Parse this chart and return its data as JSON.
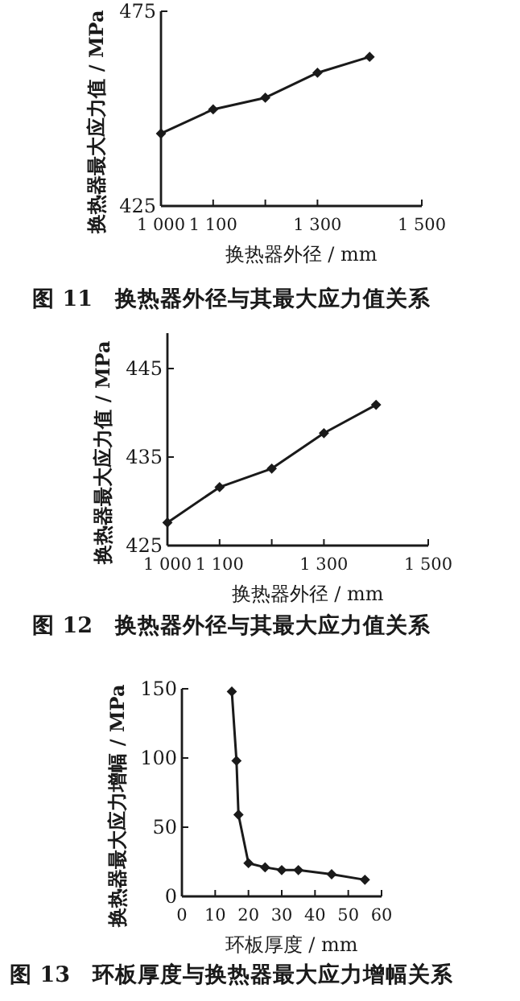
{
  "chart_data": [
    {
      "type": "line",
      "title": "图 11　换热器外径与其最大应力值关系",
      "xlabel": "换热器外径 / mm",
      "ylabel": "换热器最大应力值 / MPa",
      "marker": "diamond",
      "xlim": [
        1000,
        1500
      ],
      "ylim": [
        425,
        475
      ],
      "xticks": [
        {
          "value": 1000,
          "label": "1 000"
        },
        {
          "value": 1100,
          "label": "1 100"
        },
        {
          "value": 1200,
          "label": null
        },
        {
          "value": 1300,
          "label": "1 300"
        },
        {
          "value": 1500,
          "label": "1 500"
        }
      ],
      "yticks": [
        425,
        475
      ],
      "x": [
        1000,
        1100,
        1200,
        1300,
        1400
      ],
      "series": [
        {
          "color": "#1a1a1a",
          "values": [
            443.6,
            449.8,
            452.8,
            459.2,
            463.3
          ]
        }
      ]
    },
    {
      "type": "line",
      "title": "图 12　换热器外径与其最大应力值关系",
      "xlabel": "换热器外径 / mm",
      "ylabel": "换热器最大应力值 / MPa",
      "marker": "diamond",
      "xlim": [
        1000,
        1500
      ],
      "ylim": [
        425,
        449
      ],
      "xticks": [
        {
          "value": 1000,
          "label": "1 000"
        },
        {
          "value": 1100,
          "label": "1 100"
        },
        {
          "value": 1200,
          "label": null
        },
        {
          "value": 1300,
          "label": "1 300"
        },
        {
          "value": 1500,
          "label": "1 500"
        }
      ],
      "yticks": [
        425,
        435,
        445
      ],
      "x": [
        1000,
        1100,
        1200,
        1300,
        1400
      ],
      "series": [
        {
          "color": "#1a1a1a",
          "values": [
            427.6,
            431.6,
            433.7,
            437.7,
            440.9
          ]
        }
      ]
    },
    {
      "type": "line",
      "title": "图 13　环板厚度与换热器最大应力增幅关系",
      "xlabel": "环板厚度 / mm",
      "ylabel": "换热器最大应力增幅 / MPa",
      "marker": "diamond",
      "xlim": [
        0,
        60
      ],
      "ylim": [
        0,
        150
      ],
      "xticks": [
        0,
        10,
        20,
        30,
        40,
        50,
        60
      ],
      "yticks": [
        0,
        50,
        100,
        150
      ],
      "x": [
        15,
        16.4,
        17,
        20,
        25,
        30,
        35,
        45,
        55
      ],
      "series": [
        {
          "color": "#1a1a1a",
          "values": [
            148,
            98,
            59,
            24,
            21,
            19,
            19,
            16,
            12
          ]
        }
      ]
    }
  ]
}
